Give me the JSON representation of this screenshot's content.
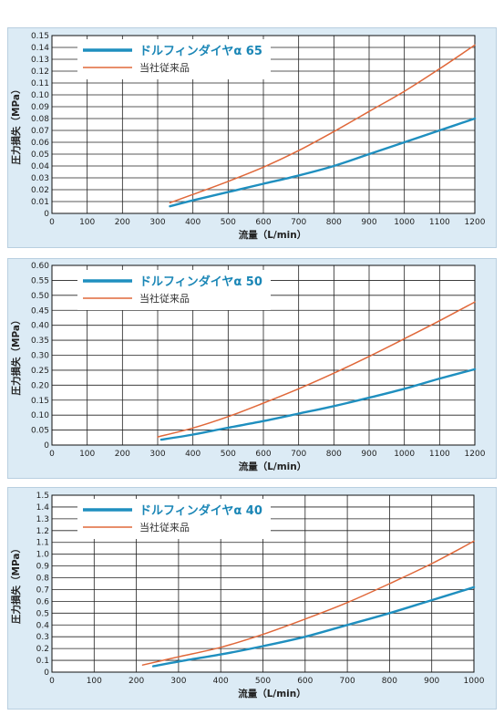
{
  "colors": {
    "new_series": "#1f8fbf",
    "old_series": "#e0683a",
    "panel_bg": "#dcebf5",
    "plot_bg": "#ffffff",
    "grid": "#222222"
  },
  "chart_data": [
    {
      "type": "line",
      "ylabel": "圧力損失（MPa）",
      "xlabel": "流量（L/min）",
      "xlim": [
        0,
        1200
      ],
      "ylim": [
        0,
        0.15
      ],
      "xticks": [
        0,
        100,
        200,
        300,
        400,
        500,
        600,
        700,
        800,
        900,
        1000,
        1100,
        1200
      ],
      "yticks": [
        "0",
        "0.01",
        "0.02",
        "0.03",
        "0.04",
        "0.05",
        "0.06",
        "0.07",
        "0.08",
        "0.09",
        "0.10",
        "0.11",
        "0.12",
        "0.13",
        "0.14",
        "0.15"
      ],
      "grid": true,
      "legend_position": "top-left",
      "series": [
        {
          "name": "ドルフィンダイヤα 65",
          "x": [
            335,
            400,
            500,
            600,
            700,
            800,
            900,
            1000,
            1100,
            1200
          ],
          "y": [
            0.006,
            0.011,
            0.018,
            0.025,
            0.032,
            0.04,
            0.05,
            0.06,
            0.07,
            0.08
          ]
        },
        {
          "name": "当社従来品",
          "x": [
            335,
            400,
            500,
            600,
            700,
            800,
            900,
            1000,
            1100,
            1200
          ],
          "y": [
            0.009,
            0.016,
            0.027,
            0.039,
            0.053,
            0.069,
            0.086,
            0.103,
            0.122,
            0.142
          ]
        }
      ]
    },
    {
      "type": "line",
      "ylabel": "圧力損失（MPa）",
      "xlabel": "流量（L/min）",
      "xlim": [
        0,
        1200
      ],
      "ylim": [
        0,
        0.6
      ],
      "xticks": [
        0,
        100,
        200,
        300,
        400,
        500,
        600,
        700,
        800,
        900,
        1000,
        1100,
        1200
      ],
      "yticks": [
        "0",
        "0.05",
        "0.10",
        "0.15",
        "0.20",
        "0.25",
        "0.30",
        "0.35",
        "0.40",
        "0.45",
        "0.50",
        "0.55",
        "0.60"
      ],
      "grid": true,
      "legend_position": "top-left",
      "series": [
        {
          "name": "ドルフィンダイヤα 50",
          "x": [
            310,
            400,
            500,
            600,
            700,
            800,
            900,
            1000,
            1100,
            1200
          ],
          "y": [
            0.018,
            0.035,
            0.058,
            0.08,
            0.105,
            0.13,
            0.158,
            0.188,
            0.222,
            0.253
          ]
        },
        {
          "name": "当社従来品",
          "x": [
            300,
            400,
            500,
            600,
            700,
            800,
            900,
            1000,
            1100,
            1200
          ],
          "y": [
            0.027,
            0.057,
            0.095,
            0.14,
            0.188,
            0.24,
            0.296,
            0.355,
            0.415,
            0.478
          ]
        }
      ]
    },
    {
      "type": "line",
      "ylabel": "圧力損失（MPa）",
      "xlabel": "流量（L/min）",
      "xlim": [
        0,
        1000
      ],
      "ylim": [
        0,
        1.5
      ],
      "xticks": [
        0,
        100,
        200,
        300,
        400,
        500,
        600,
        700,
        800,
        900,
        1000
      ],
      "yticks": [
        "0",
        "0.1",
        "0.2",
        "0.3",
        "0.4",
        "0.5",
        "0.6",
        "0.7",
        "0.8",
        "0.9",
        "1.0",
        "1.1",
        "1.2",
        "1.3",
        "1.4",
        "1.5"
      ],
      "grid": true,
      "legend_position": "top-left",
      "series": [
        {
          "name": "ドルフィンダイヤα 40",
          "x": [
            240,
            300,
            400,
            500,
            600,
            700,
            800,
            900,
            1000
          ],
          "y": [
            0.05,
            0.09,
            0.15,
            0.22,
            0.3,
            0.4,
            0.5,
            0.61,
            0.72
          ]
        },
        {
          "name": "当社従来品",
          "x": [
            215,
            300,
            400,
            500,
            600,
            700,
            800,
            900,
            1000
          ],
          "y": [
            0.06,
            0.13,
            0.21,
            0.32,
            0.45,
            0.59,
            0.75,
            0.92,
            1.11
          ]
        }
      ]
    }
  ]
}
